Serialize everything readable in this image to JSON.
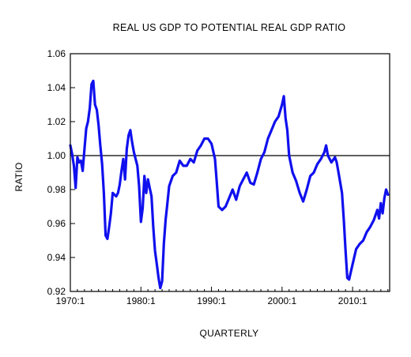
{
  "chart_data": {
    "type": "line",
    "title": "REAL US GDP TO POTENTIAL REAL GDP RATIO",
    "xlabel": "QUARTERLY",
    "ylabel": "RATIO",
    "xlim": [
      1970.0,
      2015.25
    ],
    "ylim": [
      0.92,
      1.06
    ],
    "x_ticks": [
      {
        "value": 1970,
        "label": "1970:1"
      },
      {
        "value": 1980,
        "label": "1980:1"
      },
      {
        "value": 1990,
        "label": "1990:1"
      },
      {
        "value": 2000,
        "label": "2000:1"
      },
      {
        "value": 2010,
        "label": "2010:1"
      }
    ],
    "y_ticks": [
      {
        "value": 0.92,
        "label": "0.92"
      },
      {
        "value": 0.94,
        "label": "0.94"
      },
      {
        "value": 0.96,
        "label": "0.96"
      },
      {
        "value": 0.98,
        "label": "0.98"
      },
      {
        "value": 1.0,
        "label": "1.00"
      },
      {
        "value": 1.02,
        "label": "1.02"
      },
      {
        "value": 1.04,
        "label": "1.04"
      },
      {
        "value": 1.06,
        "label": "1.06"
      }
    ],
    "reference_line": 1.0,
    "line_color": "#1010ee",
    "grid": false,
    "series": [
      {
        "x": [
          1970.0,
          1970.25,
          1970.5,
          1970.75,
          1971.0,
          1971.25,
          1971.5,
          1971.75,
          1972.0,
          1972.25,
          1972.5,
          1972.75,
          1973.0,
          1973.25,
          1973.5,
          1973.75,
          1974.0,
          1974.25,
          1974.5,
          1974.75,
          1975.0,
          1975.25,
          1975.5,
          1975.75,
          1976.0,
          1976.25,
          1976.5,
          1976.75,
          1977.0,
          1977.25,
          1977.5,
          1977.75,
          1978.0,
          1978.25,
          1978.5,
          1978.75,
          1979.0,
          1979.25,
          1979.5,
          1979.75,
          1980.0,
          1980.25,
          1980.5,
          1980.75,
          1981.0,
          1981.25,
          1981.5,
          1981.75,
          1982.0,
          1982.25,
          1982.5,
          1982.75,
          1983.0,
          1983.25,
          1983.5,
          1983.75,
          1984.0,
          1984.5,
          1985.0,
          1985.5,
          1986.0,
          1986.5,
          1987.0,
          1987.5,
          1988.0,
          1988.5,
          1989.0,
          1989.5,
          1990.0,
          1990.5,
          1990.75,
          1991.0,
          1991.5,
          1992.0,
          1992.5,
          1993.0,
          1993.5,
          1994.0,
          1994.5,
          1995.0,
          1995.5,
          1996.0,
          1996.5,
          1997.0,
          1997.5,
          1998.0,
          1998.5,
          1999.0,
          1999.5,
          2000.0,
          2000.25,
          2000.5,
          2000.75,
          2001.0,
          2001.5,
          2002.0,
          2002.5,
          2003.0,
          2003.5,
          2004.0,
          2004.5,
          2005.0,
          2005.5,
          2006.0,
          2006.25,
          2006.5,
          2007.0,
          2007.5,
          2007.75,
          2008.0,
          2008.5,
          2008.75,
          2009.0,
          2009.25,
          2009.5,
          2010.0,
          2010.5,
          2011.0,
          2011.5,
          2012.0,
          2012.5,
          2013.0,
          2013.5,
          2013.75,
          2014.0,
          2014.25,
          2014.5,
          2014.75,
          2015.0
        ],
        "values": [
          1.006,
          1.001,
          0.994,
          0.981,
          0.999,
          0.996,
          0.997,
          0.991,
          1.004,
          1.016,
          1.02,
          1.028,
          1.042,
          1.044,
          1.03,
          1.027,
          1.018,
          1.006,
          0.995,
          0.978,
          0.953,
          0.951,
          0.958,
          0.966,
          0.978,
          0.977,
          0.976,
          0.978,
          0.983,
          0.991,
          0.998,
          0.986,
          1.004,
          1.012,
          1.015,
          1.008,
          1.002,
          0.998,
          0.994,
          0.982,
          0.961,
          0.969,
          0.988,
          0.978,
          0.986,
          0.981,
          0.976,
          0.958,
          0.944,
          0.936,
          0.928,
          0.922,
          0.926,
          0.948,
          0.962,
          0.972,
          0.982,
          0.988,
          0.99,
          0.997,
          0.994,
          0.994,
          0.998,
          0.996,
          1.003,
          1.006,
          1.01,
          1.01,
          1.007,
          0.998,
          0.984,
          0.97,
          0.968,
          0.97,
          0.975,
          0.98,
          0.974,
          0.982,
          0.986,
          0.99,
          0.984,
          0.983,
          0.99,
          0.998,
          1.002,
          1.01,
          1.015,
          1.02,
          1.023,
          1.03,
          1.035,
          1.022,
          1.015,
          1.0,
          0.99,
          0.985,
          0.978,
          0.973,
          0.98,
          0.988,
          0.99,
          0.995,
          0.998,
          1.002,
          1.006,
          1.0,
          0.996,
          0.999,
          0.996,
          0.99,
          0.978,
          0.962,
          0.944,
          0.928,
          0.927,
          0.936,
          0.945,
          0.948,
          0.95,
          0.955,
          0.958,
          0.962,
          0.968,
          0.963,
          0.972,
          0.966,
          0.975,
          0.98,
          0.977
        ]
      }
    ]
  }
}
